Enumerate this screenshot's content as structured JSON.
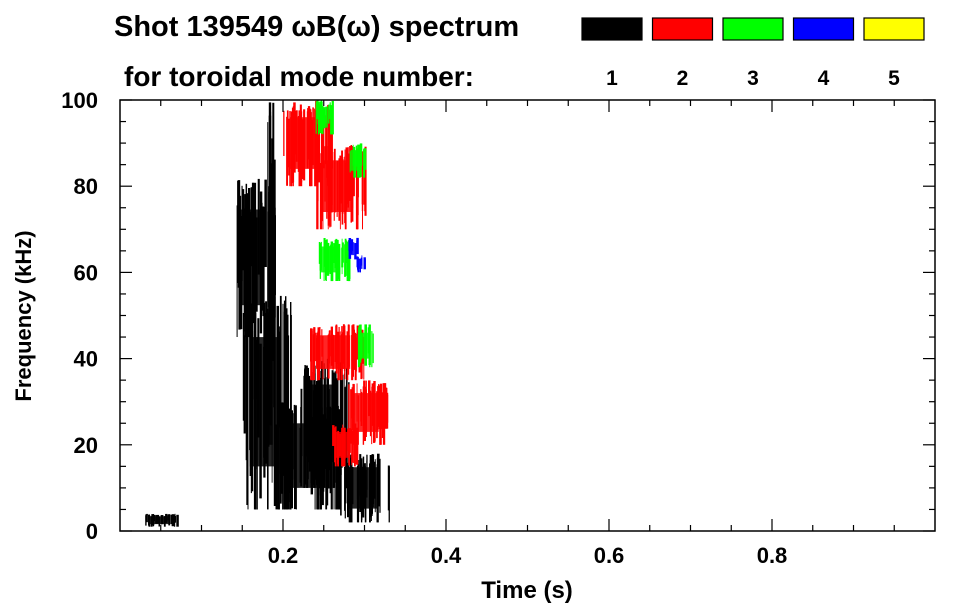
{
  "chart_data": {
    "type": "heatmap",
    "title": "Shot 139549 ωB(ω) spectrum",
    "legend_title": "for toroidal mode number:",
    "xlabel": "Time (s)",
    "ylabel": "Frequency (kHz)",
    "xlim": [
      0.0,
      1.0
    ],
    "ylim": [
      0,
      100
    ],
    "xticks": [
      0.2,
      0.4,
      0.6,
      0.8
    ],
    "xtick_labels": [
      "0.2",
      "0.4",
      "0.6",
      "0.8"
    ],
    "yticks": [
      0,
      20,
      40,
      60,
      80,
      100
    ],
    "ytick_labels": [
      "0",
      "20",
      "40",
      "60",
      "80",
      "100"
    ],
    "legend": [
      {
        "mode": "1",
        "color": "#000000"
      },
      {
        "mode": "2",
        "color": "#ff0000"
      },
      {
        "mode": "3",
        "color": "#00ff00"
      },
      {
        "mode": "4",
        "color": "#0000ff"
      },
      {
        "mode": "5",
        "color": "#ffff00"
      }
    ],
    "series": [
      {
        "mode": "1",
        "color": "#000000",
        "regions": [
          {
            "t": [
              0.03,
              0.07
            ],
            "f": [
              1,
              4
            ]
          },
          {
            "t": [
              0.14,
              0.19
            ],
            "f": [
              45,
              82
            ]
          },
          {
            "t": [
              0.15,
              0.21
            ],
            "f": [
              5,
              55
            ]
          },
          {
            "t": [
              0.19,
              0.27
            ],
            "f": [
              5,
              30
            ]
          },
          {
            "t": [
              0.22,
              0.28
            ],
            "f": [
              10,
              40
            ]
          },
          {
            "t": [
              0.27,
              0.33
            ],
            "f": [
              2,
              18
            ]
          },
          {
            "t": [
              0.18,
              0.19
            ],
            "f": [
              0,
              100
            ]
          }
        ]
      },
      {
        "mode": "2",
        "color": "#ff0000",
        "regions": [
          {
            "t": [
              0.23,
              0.3
            ],
            "f": [
              35,
              48
            ]
          },
          {
            "t": [
              0.28,
              0.33
            ],
            "f": [
              20,
              35
            ]
          },
          {
            "t": [
              0.24,
              0.3
            ],
            "f": [
              70,
              90
            ]
          },
          {
            "t": [
              0.2,
              0.26
            ],
            "f": [
              80,
              100
            ]
          },
          {
            "t": [
              0.26,
              0.29
            ],
            "f": [
              15,
              25
            ]
          }
        ]
      },
      {
        "mode": "3",
        "color": "#00ff00",
        "regions": [
          {
            "t": [
              0.24,
              0.28
            ],
            "f": [
              58,
              68
            ]
          },
          {
            "t": [
              0.29,
              0.31
            ],
            "f": [
              38,
              48
            ]
          },
          {
            "t": [
              0.24,
              0.26
            ],
            "f": [
              92,
              100
            ]
          },
          {
            "t": [
              0.28,
              0.3
            ],
            "f": [
              82,
              90
            ]
          }
        ]
      },
      {
        "mode": "4",
        "color": "#0000ff",
        "regions": [
          {
            "t": [
              0.29,
              0.3
            ],
            "f": [
              60,
              64
            ]
          },
          {
            "t": [
              0.28,
              0.29
            ],
            "f": [
              63,
              68
            ]
          }
        ]
      }
    ]
  }
}
